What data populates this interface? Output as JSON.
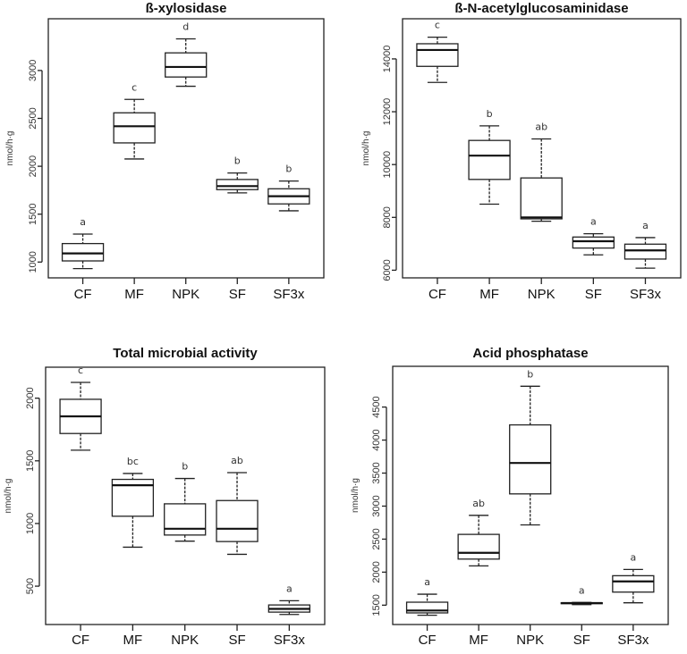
{
  "chart_data": [
    {
      "type": "box",
      "title": "ß-xylosidase",
      "ylabel": "nmol/h·g",
      "categories": [
        "CF",
        "MF",
        "NPK",
        "SF",
        "SF3x"
      ],
      "ylim": [
        835,
        3540
      ],
      "yticks": [
        1000,
        1500,
        2000,
        2500,
        3000
      ],
      "grid": false,
      "boxes": [
        {
          "min": 932,
          "q1": 1012,
          "median": 1090,
          "q3": 1193,
          "max": 1292,
          "letter": "a"
        },
        {
          "min": 2076,
          "q1": 2244,
          "median": 2418,
          "q3": 2558,
          "max": 2698,
          "letter": "c"
        },
        {
          "min": 2835,
          "q1": 2932,
          "median": 3037,
          "q3": 3184,
          "max": 3330,
          "letter": "d"
        },
        {
          "min": 1722,
          "q1": 1756,
          "median": 1793,
          "q3": 1862,
          "max": 1930,
          "letter": "b"
        },
        {
          "min": 1535,
          "q1": 1607,
          "median": 1687,
          "q3": 1765,
          "max": 1846,
          "letter": "b"
        }
      ]
    },
    {
      "type": "box",
      "title": "ß-N-acetylglucosaminidase",
      "ylabel": "nmol/h·g",
      "categories": [
        "CF",
        "MF",
        "NPK",
        "SF",
        "SF3x"
      ],
      "ylim": [
        5710,
        15520
      ],
      "yticks": [
        6000,
        8000,
        10000,
        12000,
        14000
      ],
      "grid": false,
      "boxes": [
        {
          "min": 13110,
          "q1": 13718,
          "median": 14338,
          "q3": 14574,
          "max": 14822,
          "letter": "c"
        },
        {
          "min": 8501,
          "q1": 9437,
          "median": 10338,
          "q3": 10913,
          "max": 11465,
          "letter": "b"
        },
        {
          "min": 7854,
          "q1": 7944,
          "median": 8000,
          "q3": 9493,
          "max": 10969,
          "letter": "ab"
        },
        {
          "min": 6580,
          "q1": 6839,
          "median": 7098,
          "q3": 7256,
          "max": 7380,
          "letter": "a"
        },
        {
          "min": 6079,
          "q1": 6422,
          "median": 6749,
          "q3": 6986,
          "max": 7234,
          "letter": "a"
        }
      ]
    },
    {
      "type": "box",
      "title": "Total microbial activity",
      "ylabel": "nmol/h·g",
      "categories": [
        "CF",
        "MF",
        "NPK",
        "SF",
        "SF3x"
      ],
      "ylim": [
        194,
        2247
      ],
      "yticks": [
        500,
        1000,
        1500,
        2000
      ],
      "grid": false,
      "boxes": [
        {
          "min": 1585,
          "q1": 1718,
          "median": 1855,
          "q3": 1991,
          "max": 2126,
          "letter": "c"
        },
        {
          "min": 811,
          "q1": 1058,
          "median": 1305,
          "q3": 1352,
          "max": 1399,
          "letter": "bc"
        },
        {
          "min": 859,
          "q1": 908,
          "median": 958,
          "q3": 1157,
          "max": 1359,
          "letter": "b"
        },
        {
          "min": 754,
          "q1": 856,
          "median": 958,
          "q3": 1183,
          "max": 1406,
          "letter": "ab"
        },
        {
          "min": 274,
          "q1": 293,
          "median": 319,
          "q3": 350,
          "max": 384,
          "letter": "a"
        }
      ]
    },
    {
      "type": "box",
      "title": "Acid phosphatase",
      "ylabel": "nmol/h·g",
      "categories": [
        "CF",
        "MF",
        "NPK",
        "SF",
        "SF3x"
      ],
      "ylim": [
        1207,
        5117
      ],
      "yticks": [
        1500,
        2000,
        2500,
        3000,
        3500,
        4000,
        4500
      ],
      "grid": false,
      "boxes": [
        {
          "min": 1347,
          "q1": 1383,
          "median": 1419,
          "q3": 1545,
          "max": 1666,
          "letter": "a"
        },
        {
          "min": 2095,
          "q1": 2198,
          "median": 2293,
          "q3": 2572,
          "max": 2860,
          "letter": "ab"
        },
        {
          "min": 2716,
          "q1": 3185,
          "median": 3653,
          "q3": 4230,
          "max": 4815,
          "letter": "b"
        },
        {
          "min": 1509,
          "q1": 1523,
          "median": 1532,
          "q3": 1536,
          "max": 1541,
          "letter": "a"
        },
        {
          "min": 1536,
          "q1": 1698,
          "median": 1860,
          "q3": 1946,
          "max": 2041,
          "letter": "a"
        }
      ]
    }
  ]
}
